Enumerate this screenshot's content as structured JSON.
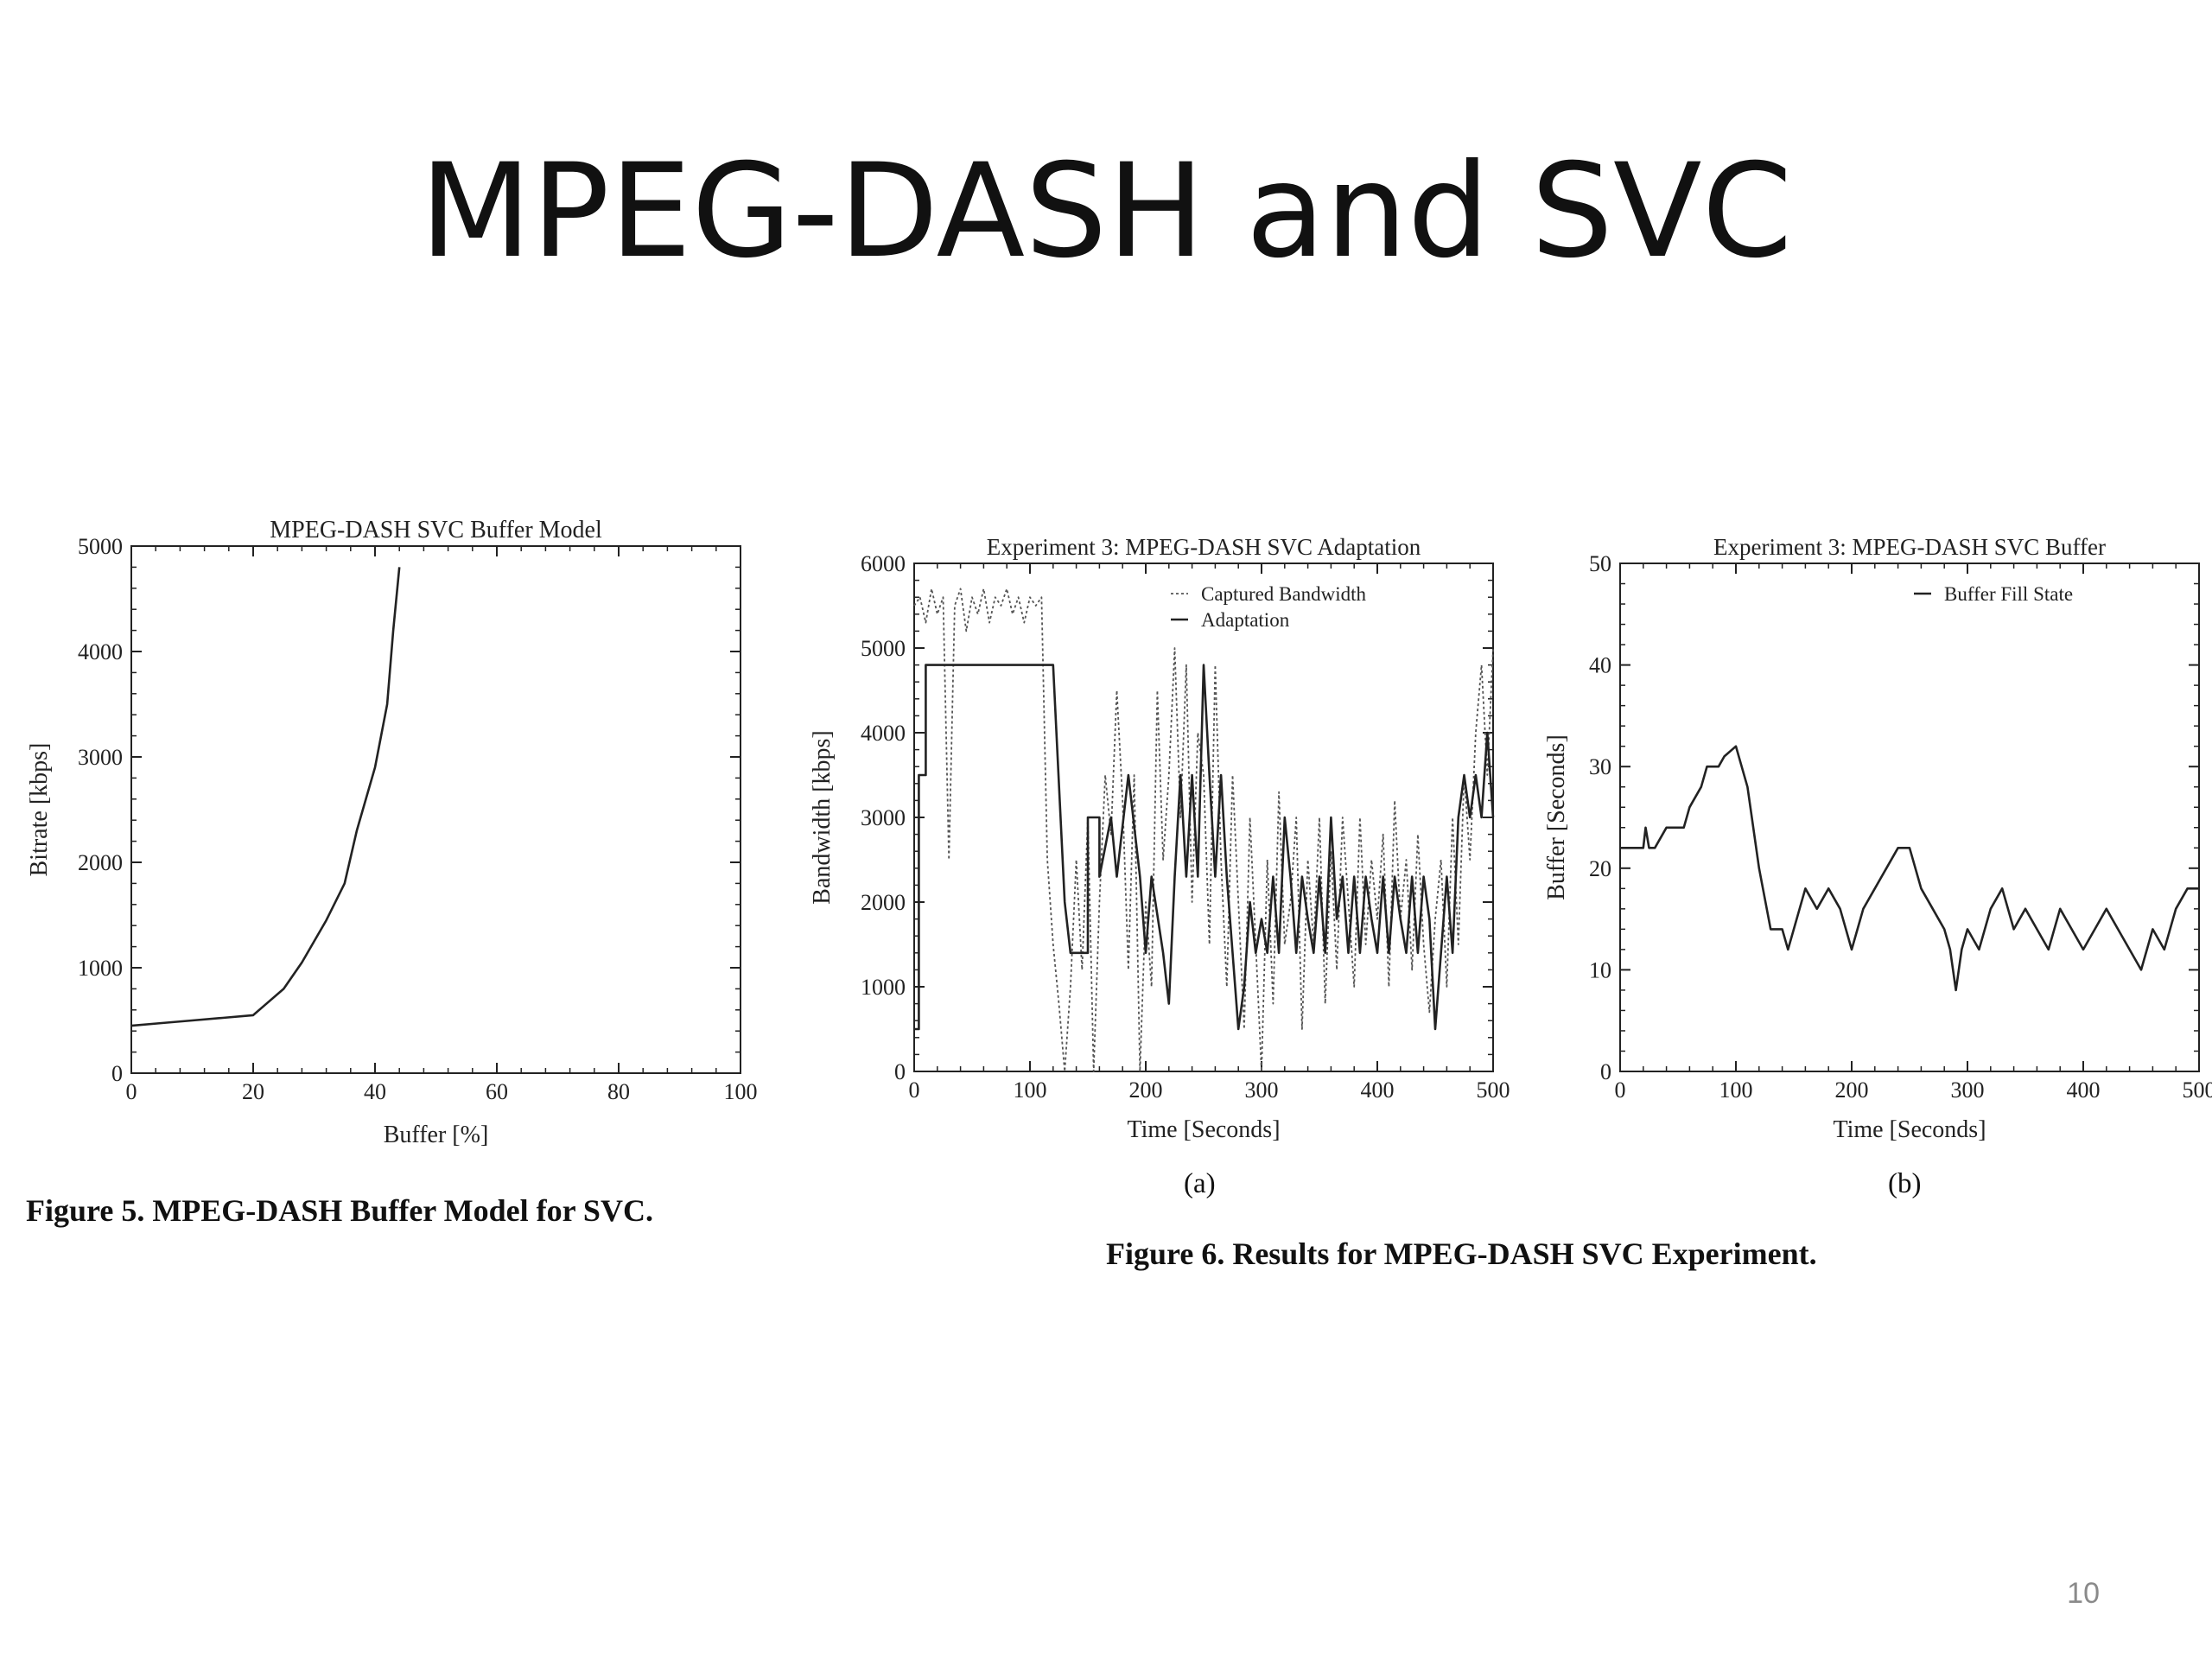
{
  "slide": {
    "title": "MPEG-DASH and SVC",
    "page_number": "10"
  },
  "figure5": {
    "caption": "Figure 5. MPEG-DASH Buffer Model for SVC."
  },
  "figure6": {
    "caption": "Figure 6. Results for MPEG-DASH SVC Experiment.",
    "label_a": "(a)",
    "label_b": "(b)"
  },
  "chart_data": [
    {
      "type": "line",
      "title": "MPEG-DASH SVC Buffer Model",
      "xlabel": "Buffer [%]",
      "ylabel": "Bitrate [kbps]",
      "xlim": [
        0,
        100
      ],
      "ylim": [
        0,
        5000
      ],
      "xticks": [
        0,
        20,
        40,
        60,
        80,
        100
      ],
      "yticks": [
        0,
        1000,
        2000,
        3000,
        4000,
        5000
      ],
      "grid": false,
      "series": [
        {
          "x": [
            0,
            5,
            10,
            15,
            20,
            22,
            25,
            28,
            30,
            32,
            35,
            37,
            40,
            42,
            43,
            44
          ],
          "y": [
            450,
            475,
            500,
            525,
            550,
            650,
            800,
            1050,
            1250,
            1450,
            1800,
            2300,
            2900,
            3500,
            4200,
            4800
          ]
        }
      ]
    },
    {
      "type": "line",
      "title": "Experiment 3: MPEG-DASH SVC Adaptation",
      "xlabel": "Time [Seconds]",
      "ylabel": "Bandwidth [kbps]",
      "xlim": [
        0,
        500
      ],
      "ylim": [
        0,
        6000
      ],
      "xticks": [
        0,
        100,
        200,
        300,
        400,
        500
      ],
      "yticks": [
        0,
        1000,
        2000,
        3000,
        4000,
        5000,
        6000
      ],
      "grid": false,
      "legend_position": "top-right",
      "series": [
        {
          "name": "Captured Bandwidth",
          "style": "dotted",
          "x": [
            0,
            5,
            10,
            15,
            20,
            25,
            30,
            35,
            40,
            45,
            50,
            55,
            60,
            65,
            70,
            75,
            80,
            85,
            90,
            95,
            100,
            105,
            110,
            115,
            120,
            125,
            130,
            135,
            140,
            145,
            150,
            155,
            160,
            165,
            170,
            175,
            180,
            185,
            190,
            195,
            200,
            205,
            210,
            215,
            220,
            225,
            230,
            235,
            240,
            245,
            250,
            255,
            260,
            265,
            270,
            275,
            280,
            285,
            290,
            295,
            300,
            305,
            310,
            315,
            320,
            325,
            330,
            335,
            340,
            345,
            350,
            355,
            360,
            365,
            370,
            375,
            380,
            385,
            390,
            395,
            400,
            405,
            410,
            415,
            420,
            425,
            430,
            435,
            440,
            445,
            450,
            455,
            460,
            465,
            470,
            475,
            480,
            485,
            490,
            495,
            500
          ],
          "y": [
            5500,
            5600,
            5300,
            5700,
            5400,
            5600,
            2500,
            5500,
            5700,
            5200,
            5600,
            5400,
            5700,
            5300,
            5600,
            5500,
            5700,
            5400,
            5600,
            5300,
            5600,
            5500,
            5600,
            2500,
            1500,
            800,
            0,
            1000,
            2500,
            1200,
            3000,
            0,
            2000,
            3500,
            2800,
            4500,
            3200,
            1200,
            3500,
            0,
            2000,
            1000,
            4500,
            2500,
            3500,
            5000,
            3000,
            4800,
            2000,
            4000,
            3500,
            1500,
            4800,
            2500,
            1000,
            3500,
            2000,
            500,
            3000,
            1500,
            0,
            2500,
            800,
            3300,
            1500,
            2000,
            3000,
            500,
            2500,
            1500,
            3000,
            800,
            2600,
            1200,
            3000,
            2000,
            1000,
            3000,
            1500,
            2500,
            1800,
            2800,
            1000,
            3200,
            1800,
            2500,
            1200,
            2800,
            1500,
            700,
            1800,
            2500,
            1000,
            3000,
            1500,
            3500,
            2500,
            4000,
            4800,
            3500,
            5000
          ]
        },
        {
          "name": "Adaptation",
          "style": "solid",
          "x": [
            0,
            4,
            4,
            10,
            10,
            120,
            130,
            135,
            150,
            150,
            160,
            160,
            170,
            175,
            185,
            195,
            200,
            205,
            215,
            220,
            225,
            230,
            235,
            240,
            245,
            250,
            255,
            260,
            265,
            270,
            275,
            280,
            285,
            290,
            295,
            300,
            305,
            310,
            315,
            320,
            325,
            330,
            335,
            340,
            345,
            350,
            355,
            360,
            365,
            370,
            375,
            380,
            385,
            390,
            395,
            400,
            405,
            410,
            415,
            420,
            425,
            430,
            435,
            440,
            445,
            450,
            455,
            460,
            465,
            470,
            475,
            480,
            485,
            490,
            495,
            500
          ],
          "y": [
            500,
            500,
            3500,
            3500,
            4800,
            4800,
            2000,
            1400,
            1400,
            3000,
            3000,
            2300,
            3000,
            2300,
            3500,
            2300,
            1400,
            2300,
            1400,
            800,
            2300,
            3500,
            2300,
            3500,
            2300,
            4800,
            3500,
            2300,
            3500,
            2300,
            1400,
            500,
            1000,
            2000,
            1400,
            1800,
            1400,
            2300,
            1400,
            3000,
            2300,
            1400,
            2300,
            1800,
            1400,
            2300,
            1400,
            3000,
            1800,
            2300,
            1400,
            2300,
            1400,
            2300,
            1800,
            1400,
            2300,
            1400,
            2300,
            1800,
            1400,
            2300,
            1400,
            2300,
            1800,
            500,
            1400,
            2300,
            1400,
            3000,
            3500,
            3000,
            3500,
            3000,
            4000,
            3000
          ]
        }
      ]
    },
    {
      "type": "line",
      "title": "Experiment 3: MPEG-DASH SVC Buffer",
      "xlabel": "Time [Seconds]",
      "ylabel": "Buffer [Seconds]",
      "xlim": [
        0,
        500
      ],
      "ylim": [
        0,
        50
      ],
      "xticks": [
        0,
        100,
        200,
        300,
        400,
        500
      ],
      "yticks": [
        0,
        10,
        20,
        30,
        40,
        50
      ],
      "grid": false,
      "legend_position": "top-right",
      "series": [
        {
          "name": "Buffer Fill State",
          "style": "solid",
          "x": [
            0,
            20,
            22,
            25,
            30,
            40,
            55,
            60,
            70,
            75,
            85,
            90,
            100,
            105,
            110,
            120,
            130,
            140,
            145,
            150,
            155,
            160,
            170,
            180,
            190,
            200,
            205,
            210,
            220,
            230,
            240,
            250,
            260,
            270,
            280,
            285,
            290,
            295,
            300,
            310,
            320,
            330,
            340,
            350,
            360,
            370,
            380,
            390,
            400,
            410,
            420,
            430,
            440,
            450,
            460,
            470,
            480,
            490,
            500
          ],
          "y": [
            22,
            22,
            24,
            22,
            22,
            24,
            24,
            26,
            28,
            30,
            30,
            31,
            32,
            30,
            28,
            20,
            14,
            14,
            12,
            14,
            16,
            18,
            16,
            18,
            16,
            12,
            14,
            16,
            18,
            20,
            22,
            22,
            18,
            16,
            14,
            12,
            8,
            12,
            14,
            12,
            16,
            18,
            14,
            16,
            14,
            12,
            16,
            14,
            12,
            14,
            16,
            14,
            12,
            10,
            14,
            12,
            16,
            18,
            18
          ]
        }
      ]
    }
  ]
}
